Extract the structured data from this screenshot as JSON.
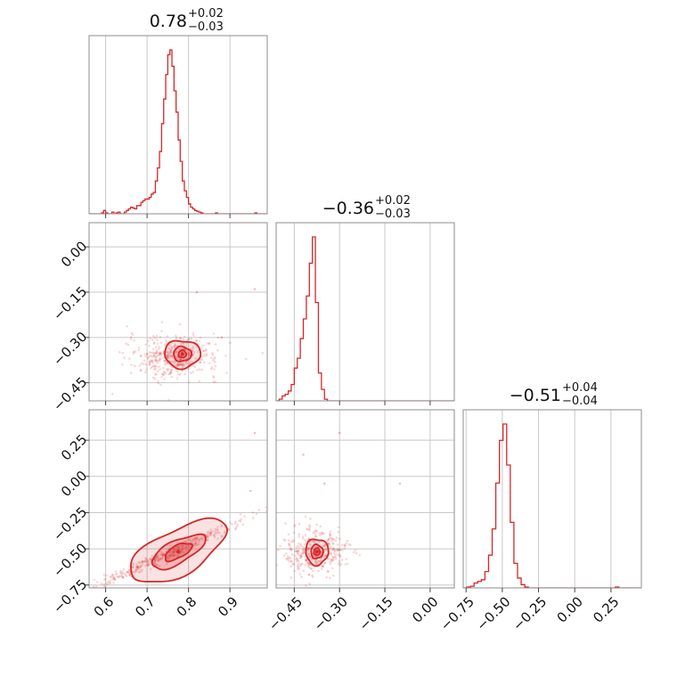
{
  "chart_data": {
    "type": "corner",
    "color": "#d62728",
    "titles": [
      {
        "main": "0.78",
        "plus": "+0.02",
        "minus": "−0.03"
      },
      {
        "main": "−0.36",
        "plus": "+0.02",
        "minus": "−0.03"
      },
      {
        "main": "−0.51",
        "plus": "+0.04",
        "minus": "−0.04"
      }
    ],
    "ranges": [
      [
        0.56,
        0.99
      ],
      [
        -0.51,
        0.08
      ],
      [
        -0.77,
        0.46
      ]
    ],
    "ticks": [
      {
        "values": [
          0.6,
          0.7,
          0.8,
          0.9
        ],
        "labels": [
          "0.6",
          "0.7",
          "0.8",
          "0.9"
        ]
      },
      {
        "values": [
          -0.45,
          -0.3,
          -0.15,
          0.0
        ],
        "labels": [
          "−0.45",
          "−0.30",
          "−0.15",
          "0.00"
        ]
      },
      {
        "values": [
          -0.75,
          -0.5,
          -0.25,
          0.0,
          0.25
        ],
        "labels": [
          "−0.75",
          "−0.50",
          "−0.25",
          "0.00",
          "0.25"
        ]
      }
    ],
    "hist": [
      {
        "x": [
          0.56,
          0.565,
          0.57,
          0.575,
          0.58,
          0.585,
          0.59,
          0.595,
          0.6,
          0.605,
          0.61,
          0.615,
          0.62,
          0.625,
          0.63,
          0.635,
          0.64,
          0.645,
          0.65,
          0.655,
          0.66,
          0.665,
          0.67,
          0.675,
          0.68,
          0.685,
          0.69,
          0.695,
          0.7,
          0.705,
          0.71,
          0.715,
          0.72,
          0.725,
          0.73,
          0.735,
          0.74,
          0.745,
          0.75,
          0.755,
          0.76,
          0.765,
          0.77,
          0.775,
          0.78,
          0.785,
          0.79,
          0.795,
          0.8,
          0.805,
          0.81,
          0.815,
          0.82,
          0.825,
          0.83,
          0.835,
          0.84,
          0.845,
          0.85,
          0.855,
          0.86,
          0.865,
          0.87,
          0.875,
          0.88,
          0.885,
          0.89,
          0.895,
          0.9,
          0.905,
          0.91,
          0.915,
          0.92,
          0.925,
          0.93,
          0.935,
          0.94,
          0.945,
          0.95,
          0.955,
          0.96,
          0.965,
          0.97,
          0.975,
          0.98,
          0.985,
          0.99
        ],
        "y": [
          0,
          0,
          0,
          0,
          0,
          0,
          0.005,
          0.02,
          0.005,
          0,
          0,
          0.01,
          0,
          0.005,
          0.01,
          0,
          0,
          0.01,
          0.02,
          0.03,
          0.04,
          0.035,
          0.03,
          0.05,
          0.05,
          0.07,
          0.08,
          0.09,
          0.09,
          0.1,
          0.12,
          0.13,
          0.2,
          0.28,
          0.38,
          0.55,
          0.7,
          0.85,
          0.97,
          1.0,
          0.9,
          0.75,
          0.62,
          0.45,
          0.32,
          0.2,
          0.14,
          0.1,
          0.06,
          0.04,
          0.03,
          0.02,
          0.015,
          0.01,
          0.005,
          0,
          0,
          0,
          0,
          0,
          0,
          0.005,
          0,
          0,
          0,
          0,
          0,
          0,
          0,
          0,
          0,
          0,
          0,
          0,
          0,
          0,
          0,
          0,
          0,
          0,
          0.005,
          0,
          0,
          0,
          0,
          0,
          0
        ]
      },
      {
        "x": [
          -0.51,
          -0.5,
          -0.49,
          -0.48,
          -0.47,
          -0.46,
          -0.45,
          -0.44,
          -0.43,
          -0.42,
          -0.41,
          -0.4,
          -0.39,
          -0.38,
          -0.37,
          -0.36,
          -0.35,
          -0.34,
          -0.33,
          -0.32,
          -0.31,
          -0.3,
          -0.29,
          -0.28,
          -0.27,
          -0.26,
          -0.25,
          -0.24,
          -0.23,
          -0.22,
          -0.21,
          -0.2,
          -0.19,
          -0.18,
          -0.17,
          -0.16,
          -0.15,
          -0.14,
          -0.13,
          -0.12,
          -0.11,
          -0.1,
          -0.09,
          -0.08,
          -0.07,
          -0.06,
          -0.05,
          -0.04,
          -0.03,
          -0.02,
          -0.01,
          0.0,
          0.01,
          0.02,
          0.03,
          0.04,
          0.05,
          0.06,
          0.07,
          0.08
        ],
        "y": [
          0,
          0.01,
          0.03,
          0.04,
          0.06,
          0.1,
          0.2,
          0.26,
          0.38,
          0.5,
          0.64,
          0.84,
          1.0,
          0.6,
          0.17,
          0.07,
          0.01,
          0,
          0,
          0,
          0,
          0,
          0,
          0,
          0,
          0,
          0,
          0,
          0,
          0,
          0,
          0,
          0,
          0,
          0,
          0,
          0,
          0,
          0,
          0,
          0,
          0,
          0,
          0,
          0,
          0,
          0,
          0,
          0,
          0,
          0,
          0,
          0,
          0,
          0,
          0,
          0,
          0,
          0,
          0
        ]
      },
      {
        "x": [
          -0.77,
          -0.745,
          -0.72,
          -0.695,
          -0.67,
          -0.645,
          -0.62,
          -0.595,
          -0.57,
          -0.545,
          -0.52,
          -0.495,
          -0.47,
          -0.445,
          -0.42,
          -0.395,
          -0.37,
          -0.345,
          -0.32,
          -0.295,
          -0.27,
          -0.245,
          -0.22,
          -0.195,
          -0.17,
          -0.145,
          -0.12,
          -0.095,
          -0.07,
          -0.045,
          -0.02,
          0.005,
          0.03,
          0.055,
          0.08,
          0.105,
          0.13,
          0.155,
          0.18,
          0.205,
          0.23,
          0.255,
          0.28,
          0.305,
          0.33,
          0.355,
          0.38,
          0.405,
          0.43,
          0.455
        ],
        "y": [
          0,
          0.005,
          0.01,
          0.03,
          0.04,
          0.05,
          0.1,
          0.2,
          0.36,
          0.64,
          0.9,
          1.0,
          0.75,
          0.4,
          0.15,
          0.06,
          0.02,
          0.005,
          0,
          0,
          0,
          0,
          0,
          0,
          0,
          0,
          0,
          0,
          0,
          0,
          0,
          0,
          0,
          0,
          0,
          0,
          0,
          0,
          0,
          0,
          0,
          0,
          0.005,
          0,
          0,
          0,
          0,
          0,
          0,
          0
        ]
      }
    ],
    "contours": {
      "1-0": {
        "center": [
          0.785,
          -0.355
        ],
        "radii": [
          0.027,
          0.027
        ],
        "levels": [
          [
            0.35,
            0.45
          ],
          [
            0.8,
            0.9
          ],
          [
            1.6,
            1.7
          ]
        ]
      },
      "2-0": {
        "center": [
          0.775,
          -0.52
        ],
        "rx": 0.08,
        "ry": 0.03,
        "angle": 28,
        "levels": [
          [
            0.45,
            0.5
          ],
          [
            0.9,
            0.9
          ],
          [
            1.6,
            1.8
          ]
        ]
      },
      "2-1": {
        "center": [
          -0.375,
          -0.52
        ],
        "radii": [
          0.025,
          0.06
        ],
        "levels": [
          [
            0.4,
            0.4
          ],
          [
            0.8,
            0.8
          ],
          [
            1.5,
            1.5
          ]
        ]
      }
    },
    "scatter": {
      "1-0": {
        "n": 420,
        "center": [
          0.765,
          -0.365
        ],
        "spread": [
          0.055,
          0.035
        ],
        "outliers": [
          [
            0.96,
            -0.14
          ],
          [
            0.82,
            -0.15
          ],
          [
            0.85,
            -0.32
          ],
          [
            0.88,
            -0.3
          ]
        ]
      },
      "2-0": {
        "n": 420,
        "center": [
          0.74,
          -0.55
        ],
        "along": 0.09,
        "across": 0.02,
        "outliers": [
          [
            0.96,
            0.3
          ],
          [
            0.95,
            -0.1
          ]
        ]
      },
      "2-1": {
        "n": 360,
        "center": [
          -0.38,
          -0.52
        ],
        "spread": [
          0.05,
          0.08
        ],
        "outliers": [
          [
            -0.3,
            0.3
          ],
          [
            -0.1,
            -0.05
          ],
          [
            -0.42,
            0.15
          ],
          [
            -0.35,
            -0.05
          ]
        ]
      }
    }
  }
}
